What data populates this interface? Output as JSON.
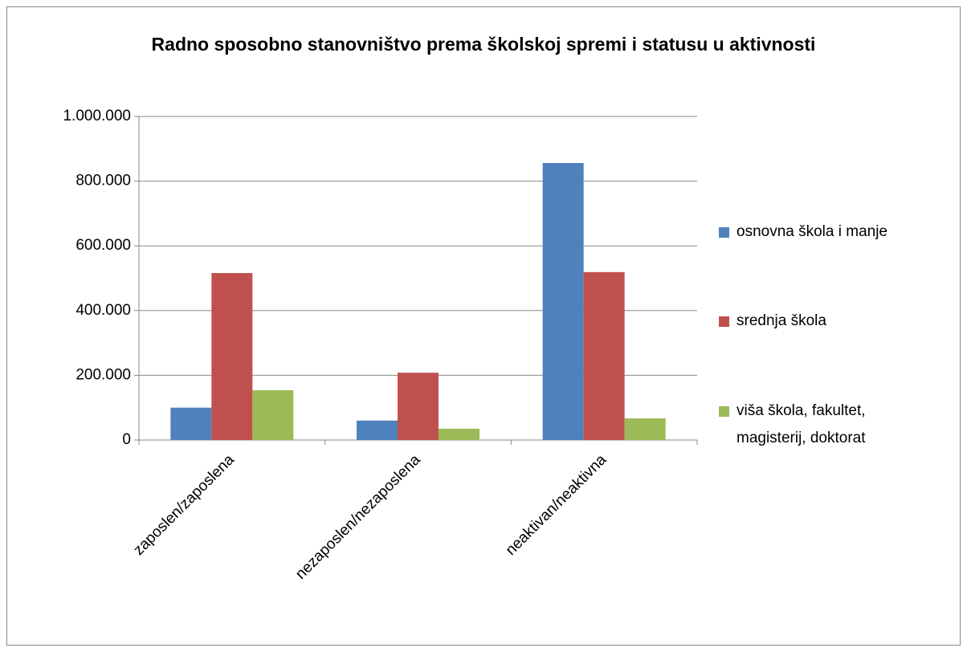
{
  "chart_data": {
    "type": "bar",
    "title": "Radno sposobno stanovništvo prema školskoj spremi i statusu u aktivnosti",
    "categories": [
      "zaposlen/zaposlena",
      "nezaposlen/nezaposlena",
      "neaktivan/neaktivna"
    ],
    "series": [
      {
        "name": "osnovna škola i manje",
        "color": "#4f81bd",
        "values": [
          100000,
          60000,
          856000
        ]
      },
      {
        "name": "srednja škola",
        "color": "#c0504d",
        "values": [
          516000,
          208000,
          519000
        ]
      },
      {
        "name": "viša škola, fakultet, magisterij, doktorat",
        "color": "#9bbb59",
        "values": [
          154000,
          35000,
          67000
        ]
      }
    ],
    "ylim": [
      0,
      1000000
    ],
    "yticks": [
      0,
      {
        "value": 200000,
        "label": "200.000"
      },
      {
        "value": 400000,
        "label": "400.000"
      },
      {
        "value": 600000,
        "label": "600.000"
      },
      {
        "value": 800000,
        "label": "800.000"
      },
      {
        "value": 1000000,
        "label": "1.000.000"
      }
    ],
    "grid": true,
    "legend": "right"
  }
}
